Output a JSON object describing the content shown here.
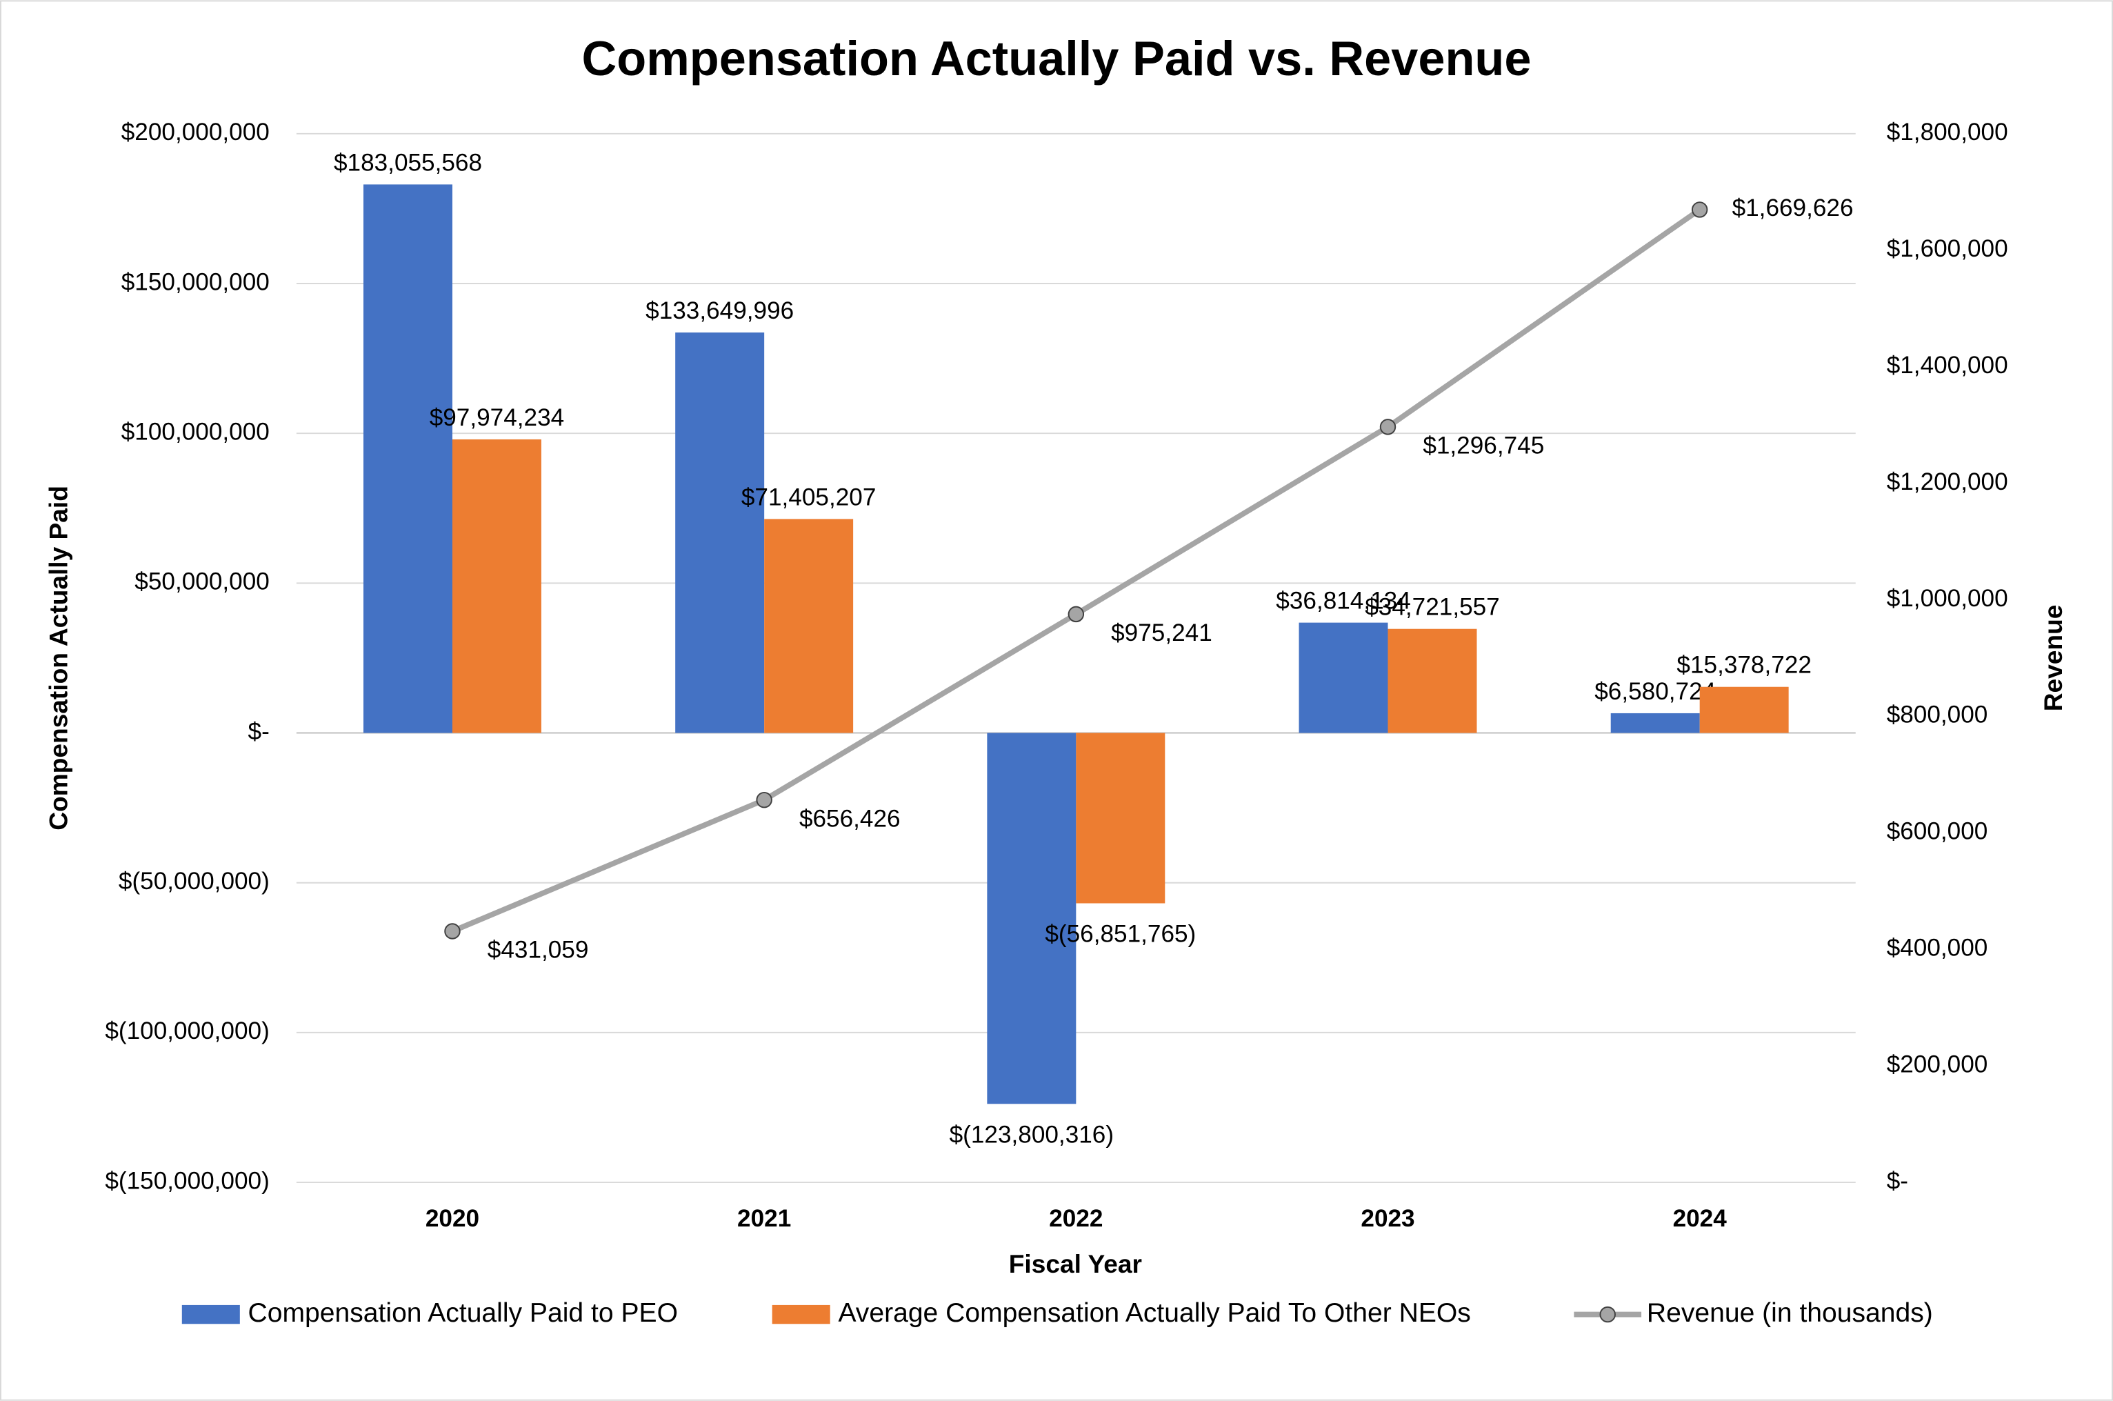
{
  "chart_data": {
    "type": "bar",
    "title": "Compensation Actually Paid vs. Revenue",
    "x_label": "Fiscal Year",
    "y_label": "Compensation Actually Paid",
    "y2_label": "Revenue",
    "categories": [
      "2020",
      "2021",
      "2022",
      "2023",
      "2024"
    ],
    "series": [
      {
        "name": "Compensation Actually Paid to PEO",
        "type": "bar",
        "color": "#4472c4",
        "values": [
          183055568,
          133649996,
          -123800316,
          36814134,
          6580724
        ],
        "value_labels": [
          "$183,055,568",
          "$133,649,996",
          "$(123,800,316)",
          "$36,814,134",
          "$6,580,724"
        ]
      },
      {
        "name": "Average Compensation Actually Paid To Other NEOs",
        "type": "bar",
        "color": "#ed7d31",
        "values": [
          97974234,
          71405207,
          -56851765,
          34721557,
          15378722
        ],
        "value_labels": [
          "$97,974,234",
          "$71,405,207",
          "$(56,851,765)",
          "$34,721,557",
          "$15,378,722"
        ]
      },
      {
        "name": "Revenue (in thousands)",
        "type": "line",
        "axis": "y2",
        "color": "#a5a5a5",
        "values": [
          431059,
          656426,
          975241,
          1296745,
          1669626
        ],
        "value_labels": [
          "$431,059",
          "$656,426",
          "$975,241",
          "$1,296,745",
          "$1,669,626"
        ]
      }
    ],
    "ylim": [
      -150000000,
      200000000
    ],
    "yticks": [
      {
        "value": -150000000,
        "label": "$(150,000,000)"
      },
      {
        "value": -100000000,
        "label": "$(100,000,000)"
      },
      {
        "value": -50000000,
        "label": "$(50,000,000)"
      },
      {
        "value": 0,
        "label": "$-"
      },
      {
        "value": 50000000,
        "label": "$50,000,000"
      },
      {
        "value": 100000000,
        "label": "$100,000,000"
      },
      {
        "value": 150000000,
        "label": "$150,000,000"
      },
      {
        "value": 200000000,
        "label": "$200,000,000"
      }
    ],
    "y2lim": [
      0,
      1800000
    ],
    "y2ticks": [
      {
        "value": 0,
        "label": "$-"
      },
      {
        "value": 200000,
        "label": "$200,000"
      },
      {
        "value": 400000,
        "label": "$400,000"
      },
      {
        "value": 600000,
        "label": "$600,000"
      },
      {
        "value": 800000,
        "label": "$800,000"
      },
      {
        "value": 1000000,
        "label": "$1,000,000"
      },
      {
        "value": 1200000,
        "label": "$1,200,000"
      },
      {
        "value": 1400000,
        "label": "$1,400,000"
      },
      {
        "value": 1600000,
        "label": "$1,600,000"
      },
      {
        "value": 1800000,
        "label": "$1,800,000"
      }
    ],
    "grid": true,
    "legend": "bottom"
  }
}
